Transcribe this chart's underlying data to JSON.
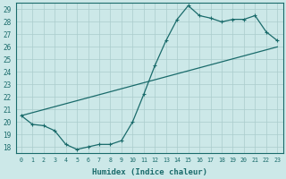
{
  "xlabel": "Humidex (Indice chaleur)",
  "ylabel": "",
  "xlim": [
    -0.5,
    23.5
  ],
  "ylim": [
    17.5,
    29.5
  ],
  "yticks": [
    18,
    19,
    20,
    21,
    22,
    23,
    24,
    25,
    26,
    27,
    28,
    29
  ],
  "xticks": [
    0,
    1,
    2,
    3,
    4,
    5,
    6,
    7,
    8,
    9,
    10,
    11,
    12,
    13,
    14,
    15,
    16,
    17,
    18,
    19,
    20,
    21,
    22,
    23
  ],
  "bg_color": "#cce8e8",
  "grid_color": "#aacccc",
  "line_color": "#1a6b6b",
  "line1_x": [
    0,
    1,
    2,
    3,
    4,
    5,
    6,
    7,
    8,
    9,
    10,
    11,
    12,
    13,
    14,
    15,
    16,
    17,
    18,
    19,
    20,
    21,
    22,
    23
  ],
  "line1_y": [
    20.5,
    19.8,
    19.7,
    19.3,
    18.2,
    17.8,
    18.0,
    18.2,
    18.2,
    18.5,
    20.0,
    22.2,
    24.5,
    26.5,
    28.2,
    29.3,
    28.5,
    28.3,
    28.0,
    28.2,
    28.2,
    28.5,
    27.2,
    26.5
  ],
  "line2_x": [
    0,
    23
  ],
  "line2_y": [
    20.5,
    26.0
  ],
  "marker": "+",
  "marker_size": 3.5,
  "line_width": 0.9
}
